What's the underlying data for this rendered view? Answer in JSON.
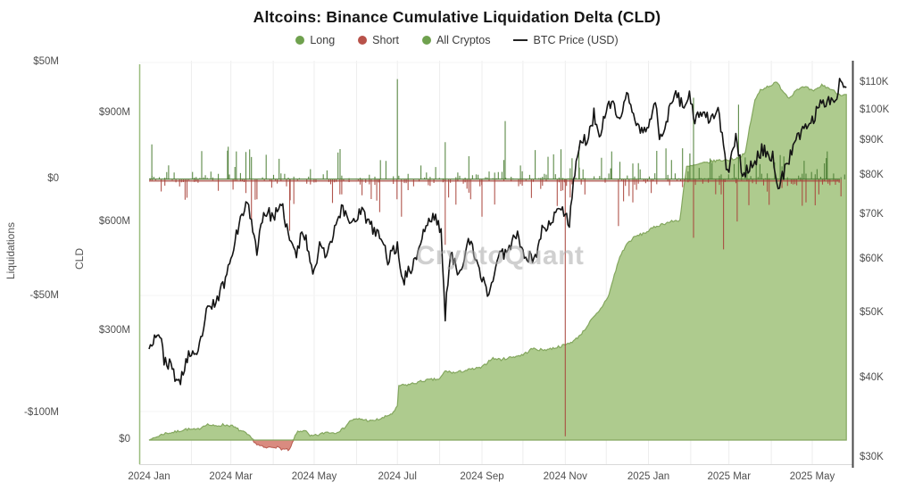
{
  "title": "Altcoins: Binance Cumulative Liquidation Delta (CLD)",
  "watermark": "CryptoQuant",
  "legend": {
    "items": [
      {
        "label": "Long",
        "marker": "dot",
        "color": "#6fa14e"
      },
      {
        "label": "Short",
        "marker": "dot",
        "color": "#b8524a"
      },
      {
        "label": "All Cryptos",
        "marker": "dot",
        "color": "#6fa14e"
      },
      {
        "label": "BTC Price (USD)",
        "marker": "line",
        "color": "#222222"
      }
    ]
  },
  "axes": {
    "left_outer": {
      "title": "Liquidations",
      "tick_labels": [
        "$50M",
        "$0",
        "-$50M",
        "-$100M"
      ],
      "tick_values_musd": [
        50,
        0,
        -50,
        -100
      ]
    },
    "left_inner": {
      "title": "CLD",
      "tick_labels": [
        "$900M",
        "$600M",
        "$300M",
        "$0"
      ],
      "tick_values_musd": [
        900,
        600,
        300,
        0
      ]
    },
    "right": {
      "title": "BTC Price (USD)",
      "scale": "log",
      "tick_labels": [
        "$110K",
        "$100K",
        "$90K",
        "$80K",
        "$70K",
        "$60K",
        "$50K",
        "$40K",
        "$30K"
      ],
      "tick_values_kusd": [
        110,
        100,
        90,
        80,
        70,
        60,
        50,
        40,
        30
      ]
    },
    "x": {
      "tick_labels": [
        "2024 Jan",
        "2024 Mar",
        "2024 May",
        "2024 Jul",
        "2024 Sep",
        "2024 Nov",
        "2025 Jan",
        "2025 Mar",
        "2025 May"
      ],
      "tick_dates": [
        "2024-01-01",
        "2024-03-01",
        "2024-05-01",
        "2024-07-01",
        "2024-09-01",
        "2024-11-01",
        "2025-01-01",
        "2025-03-01",
        "2025-05-01"
      ]
    }
  },
  "colors": {
    "area_fill": "#aecb8e",
    "area_edge": "#84a75f",
    "area_negative_fill": "#d98b80",
    "area_negative_edge": "#b8574c",
    "long_bar": "#4a7d33",
    "short_bar": "#a8423a",
    "btc_line": "#141414",
    "grid": "#ededed",
    "grid_h": "#f4f4f4",
    "axis_text": "#4f4f4f",
    "right_axis_line": "#4a4a4a",
    "bottom_axis_line": "#d9d9d9",
    "plot_left_border": "#9bbd7e"
  },
  "chart_data": {
    "type": "combo",
    "title": "Altcoins: Binance Cumulative Liquidation Delta (CLD)",
    "x_range": {
      "start": "2024-01-01",
      "end": "2025-05-26"
    },
    "y_axes": {
      "liquidations_musd": {
        "ticks": [
          50,
          0,
          -50,
          -100
        ],
        "approx_range": [
          -123,
          51
        ]
      },
      "cld_musd": {
        "ticks": [
          900,
          600,
          300,
          0
        ],
        "approx_range": [
          -40,
          1040
        ]
      },
      "btc_price_kusd": {
        "scale": "log",
        "ticks": [
          110,
          100,
          90,
          80,
          70,
          60,
          50,
          40,
          30
        ]
      }
    },
    "series": [
      {
        "name": "All Cryptos",
        "type": "area",
        "axis": "cld_musd",
        "unit": "$M",
        "points": [
          [
            "2024-01-01",
            0
          ],
          [
            "2024-01-06",
            8
          ],
          [
            "2024-01-12",
            18
          ],
          [
            "2024-01-20",
            22
          ],
          [
            "2024-01-28",
            30
          ],
          [
            "2024-02-05",
            28
          ],
          [
            "2024-02-12",
            44
          ],
          [
            "2024-02-18",
            38
          ],
          [
            "2024-02-24",
            42
          ],
          [
            "2024-03-01",
            40
          ],
          [
            "2024-03-06",
            30
          ],
          [
            "2024-03-12",
            18
          ],
          [
            "2024-03-16",
            5
          ],
          [
            "2024-03-20",
            -12
          ],
          [
            "2024-03-26",
            -22
          ],
          [
            "2024-04-02",
            -18
          ],
          [
            "2024-04-08",
            -25
          ],
          [
            "2024-04-13",
            -28
          ],
          [
            "2024-04-18",
            20
          ],
          [
            "2024-04-24",
            28
          ],
          [
            "2024-04-28",
            10
          ],
          [
            "2024-05-04",
            14
          ],
          [
            "2024-05-10",
            22
          ],
          [
            "2024-05-16",
            20
          ],
          [
            "2024-05-22",
            30
          ],
          [
            "2024-05-28",
            55
          ],
          [
            "2024-06-04",
            58
          ],
          [
            "2024-06-12",
            52
          ],
          [
            "2024-06-20",
            60
          ],
          [
            "2024-06-28",
            75
          ],
          [
            "2024-07-01",
            92
          ],
          [
            "2024-07-02",
            150
          ],
          [
            "2024-07-08",
            152
          ],
          [
            "2024-07-15",
            158
          ],
          [
            "2024-07-22",
            165
          ],
          [
            "2024-08-01",
            168
          ],
          [
            "2024-08-05",
            190
          ],
          [
            "2024-08-12",
            185
          ],
          [
            "2024-08-20",
            192
          ],
          [
            "2024-09-01",
            200
          ],
          [
            "2024-09-08",
            225
          ],
          [
            "2024-09-15",
            222
          ],
          [
            "2024-09-22",
            228
          ],
          [
            "2024-10-01",
            235
          ],
          [
            "2024-10-08",
            252
          ],
          [
            "2024-10-15",
            248
          ],
          [
            "2024-10-22",
            252
          ],
          [
            "2024-11-01",
            262
          ],
          [
            "2024-11-08",
            275
          ],
          [
            "2024-11-14",
            298
          ],
          [
            "2024-11-20",
            330
          ],
          [
            "2024-11-26",
            355
          ],
          [
            "2024-12-03",
            400
          ],
          [
            "2024-12-07",
            455
          ],
          [
            "2024-12-11",
            505
          ],
          [
            "2024-12-16",
            540
          ],
          [
            "2024-12-22",
            560
          ],
          [
            "2024-12-30",
            572
          ],
          [
            "2025-01-06",
            588
          ],
          [
            "2025-01-12",
            596
          ],
          [
            "2025-01-18",
            602
          ],
          [
            "2025-01-24",
            606
          ],
          [
            "2025-01-27",
            700
          ],
          [
            "2025-01-29",
            752
          ],
          [
            "2025-02-05",
            758
          ],
          [
            "2025-02-12",
            764
          ],
          [
            "2025-02-20",
            770
          ],
          [
            "2025-03-01",
            772
          ],
          [
            "2025-03-08",
            778
          ],
          [
            "2025-03-13",
            790
          ],
          [
            "2025-03-16",
            860
          ],
          [
            "2025-03-20",
            935
          ],
          [
            "2025-03-24",
            965
          ],
          [
            "2025-03-30",
            975
          ],
          [
            "2025-04-05",
            985
          ],
          [
            "2025-04-10",
            960
          ],
          [
            "2025-04-14",
            942
          ],
          [
            "2025-04-20",
            968
          ],
          [
            "2025-04-26",
            972
          ],
          [
            "2025-05-02",
            960
          ],
          [
            "2025-05-08",
            978
          ],
          [
            "2025-05-14",
            968
          ],
          [
            "2025-05-21",
            952
          ]
        ]
      },
      {
        "name": "BTC Price (USD)",
        "type": "line",
        "axis": "btc_price_kusd",
        "unit": "$K",
        "points": [
          [
            "2024-01-01",
            44.2
          ],
          [
            "2024-01-03",
            45.5
          ],
          [
            "2024-01-08",
            47.0
          ],
          [
            "2024-01-12",
            42.8
          ],
          [
            "2024-01-18",
            41.3
          ],
          [
            "2024-01-23",
            39.0
          ],
          [
            "2024-01-30",
            43.5
          ],
          [
            "2024-02-05",
            42.6
          ],
          [
            "2024-02-12",
            49.9
          ],
          [
            "2024-02-20",
            52.3
          ],
          [
            "2024-02-27",
            57.0
          ],
          [
            "2024-03-05",
            66.0
          ],
          [
            "2024-03-08",
            68.3
          ],
          [
            "2024-03-11",
            72.1
          ],
          [
            "2024-03-14",
            73.1
          ],
          [
            "2024-03-17",
            65.3
          ],
          [
            "2024-03-20",
            62.3
          ],
          [
            "2024-03-25",
            70.8
          ],
          [
            "2024-04-01",
            69.7
          ],
          [
            "2024-04-08",
            71.6
          ],
          [
            "2024-04-13",
            63.9
          ],
          [
            "2024-04-18",
            61.2
          ],
          [
            "2024-04-23",
            66.4
          ],
          [
            "2024-05-01",
            57.3
          ],
          [
            "2024-05-06",
            64.0
          ],
          [
            "2024-05-10",
            60.8
          ],
          [
            "2024-05-15",
            66.2
          ],
          [
            "2024-05-21",
            71.4
          ],
          [
            "2024-05-28",
            68.3
          ],
          [
            "2024-06-05",
            71.1
          ],
          [
            "2024-06-11",
            67.3
          ],
          [
            "2024-06-18",
            65.1
          ],
          [
            "2024-06-24",
            60.3
          ],
          [
            "2024-07-01",
            62.8
          ],
          [
            "2024-07-05",
            55.9
          ],
          [
            "2024-07-13",
            59.2
          ],
          [
            "2024-07-22",
            67.5
          ],
          [
            "2024-07-29",
            69.9
          ],
          [
            "2024-08-02",
            65.4
          ],
          [
            "2024-08-05",
            49.8
          ],
          [
            "2024-08-09",
            60.9
          ],
          [
            "2024-08-15",
            57.6
          ],
          [
            "2024-08-23",
            64.1
          ],
          [
            "2024-08-28",
            59.0
          ],
          [
            "2024-09-06",
            53.3
          ],
          [
            "2024-09-13",
            60.5
          ],
          [
            "2024-09-18",
            61.7
          ],
          [
            "2024-09-27",
            65.8
          ],
          [
            "2024-10-03",
            60.6
          ],
          [
            "2024-10-10",
            60.3
          ],
          [
            "2024-10-16",
            67.6
          ],
          [
            "2024-10-21",
            67.4
          ],
          [
            "2024-10-29",
            72.7
          ],
          [
            "2024-11-04",
            68.0
          ],
          [
            "2024-11-06",
            75.6
          ],
          [
            "2024-11-11",
            88.7
          ],
          [
            "2024-11-13",
            90.4
          ],
          [
            "2024-11-18",
            90.5
          ],
          [
            "2024-11-22",
            98.9
          ],
          [
            "2024-11-26",
            91.9
          ],
          [
            "2024-12-05",
            103.9
          ],
          [
            "2024-12-10",
            96.6
          ],
          [
            "2024-12-17",
            106.1
          ],
          [
            "2024-12-23",
            94.9
          ],
          [
            "2024-12-30",
            92.6
          ],
          [
            "2025-01-06",
            102.1
          ],
          [
            "2025-01-09",
            92.5
          ],
          [
            "2025-01-13",
            94.5
          ],
          [
            "2025-01-20",
            106.1
          ],
          [
            "2025-01-27",
            102.1
          ],
          [
            "2025-01-31",
            104.7
          ],
          [
            "2025-02-03",
            97.7
          ],
          [
            "2025-02-14",
            97.5
          ],
          [
            "2025-02-21",
            99.4
          ],
          [
            "2025-02-25",
            88.7
          ],
          [
            "2025-02-28",
            80.3
          ],
          [
            "2025-03-06",
            90.6
          ],
          [
            "2025-03-11",
            80.7
          ],
          [
            "2025-03-18",
            82.7
          ],
          [
            "2025-03-25",
            87.5
          ],
          [
            "2025-04-02",
            85.2
          ],
          [
            "2025-04-07",
            76.3
          ],
          [
            "2025-04-09",
            79.6
          ],
          [
            "2025-04-14",
            84.5
          ],
          [
            "2025-04-23",
            93.7
          ],
          [
            "2025-05-01",
            96.5
          ],
          [
            "2025-05-08",
            103.2
          ],
          [
            "2025-05-13",
            104.1
          ],
          [
            "2025-05-18",
            103.4
          ],
          [
            "2025-05-21",
            110.7
          ],
          [
            "2025-05-24",
            109.0
          ],
          [
            "2025-05-26",
            108.2
          ]
        ]
      },
      {
        "name": "Long",
        "type": "bar",
        "axis": "liquidations_musd",
        "unit": "$M",
        "typical_range": [
          0,
          12
        ],
        "notable_points": [
          [
            "2024-01-03",
            15
          ],
          [
            "2024-02-28",
            14
          ],
          [
            "2024-03-05",
            12
          ],
          [
            "2024-05-20",
            13
          ],
          [
            "2024-07-01",
            43
          ],
          [
            "2024-08-05",
            16
          ],
          [
            "2024-09-18",
            25
          ],
          [
            "2024-11-11",
            14
          ],
          [
            "2024-12-05",
            12
          ],
          [
            "2025-02-03",
            35
          ],
          [
            "2025-03-08",
            32
          ],
          [
            "2025-05-12",
            12
          ]
        ]
      },
      {
        "name": "Short",
        "type": "bar",
        "axis": "liquidations_musd",
        "unit": "$M",
        "typical_range": [
          -10,
          0
        ],
        "notable_points": [
          [
            "2024-03-16",
            -18
          ],
          [
            "2024-04-13",
            -22
          ],
          [
            "2024-06-18",
            -14
          ],
          [
            "2024-07-04",
            -16
          ],
          [
            "2024-08-05",
            -28
          ],
          [
            "2024-09-01",
            -16
          ],
          [
            "2024-11-01",
            -110
          ],
          [
            "2024-12-10",
            -20
          ],
          [
            "2025-02-03",
            -25
          ],
          [
            "2025-02-25",
            -30
          ],
          [
            "2025-03-07",
            -18
          ]
        ]
      }
    ]
  }
}
